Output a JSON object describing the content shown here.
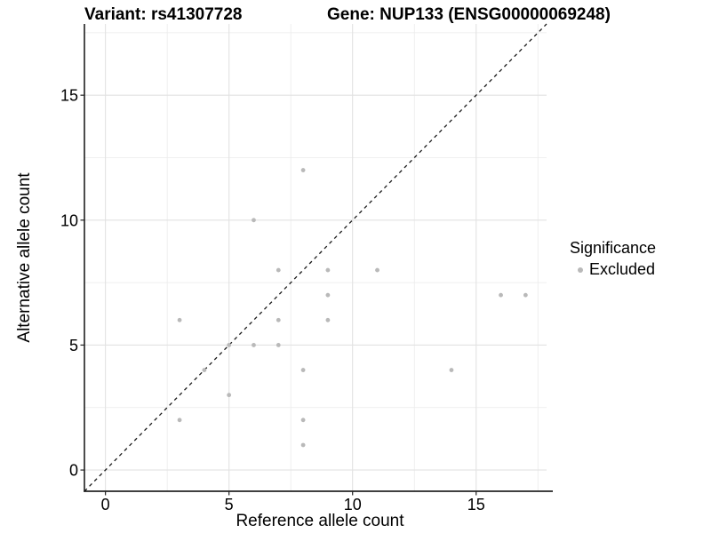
{
  "chart_data": {
    "type": "scatter",
    "title_left": "Variant: rs41307728",
    "title_right": "Gene: NUP133 (ENSG00000069248)",
    "xlabel": "Reference allele count",
    "ylabel": "Alternative allele count",
    "xlim": [
      -0.85,
      17.85
    ],
    "ylim": [
      -0.85,
      17.85
    ],
    "x_ticks": [
      0,
      5,
      10,
      15
    ],
    "y_ticks": [
      0,
      5,
      10,
      15
    ],
    "minor_gridlines": [
      2.5,
      7.5,
      12.5,
      17.5
    ],
    "grid": "major and minor, light gray on white",
    "identity_line": {
      "equation": "y = x",
      "style": "dashed",
      "color": "#1a1a1a"
    },
    "series": [
      {
        "name": "Excluded",
        "color": "#b9b9b9",
        "points": [
          [
            3,
            2
          ],
          [
            3,
            6
          ],
          [
            4,
            4
          ],
          [
            5,
            3
          ],
          [
            5,
            5
          ],
          [
            6,
            5
          ],
          [
            6,
            10
          ],
          [
            7,
            5
          ],
          [
            7,
            6
          ],
          [
            7,
            8
          ],
          [
            8,
            1
          ],
          [
            8,
            2
          ],
          [
            8,
            4
          ],
          [
            8,
            12
          ],
          [
            9,
            6
          ],
          [
            9,
            7
          ],
          [
            9,
            8
          ],
          [
            11,
            8
          ],
          [
            14,
            4
          ],
          [
            16,
            7
          ],
          [
            17,
            7
          ]
        ]
      }
    ],
    "legend": {
      "title": "Significance",
      "position": "right",
      "items": [
        {
          "label": "Excluded",
          "color": "#b9b9b9"
        }
      ]
    }
  },
  "colors": {
    "background": "#ffffff",
    "point": "#b9b9b9",
    "grid_major": "#e2e2e2",
    "grid_minor": "#ebebeb",
    "axis_line": "#000000",
    "identity_line": "#1a1a1a"
  }
}
